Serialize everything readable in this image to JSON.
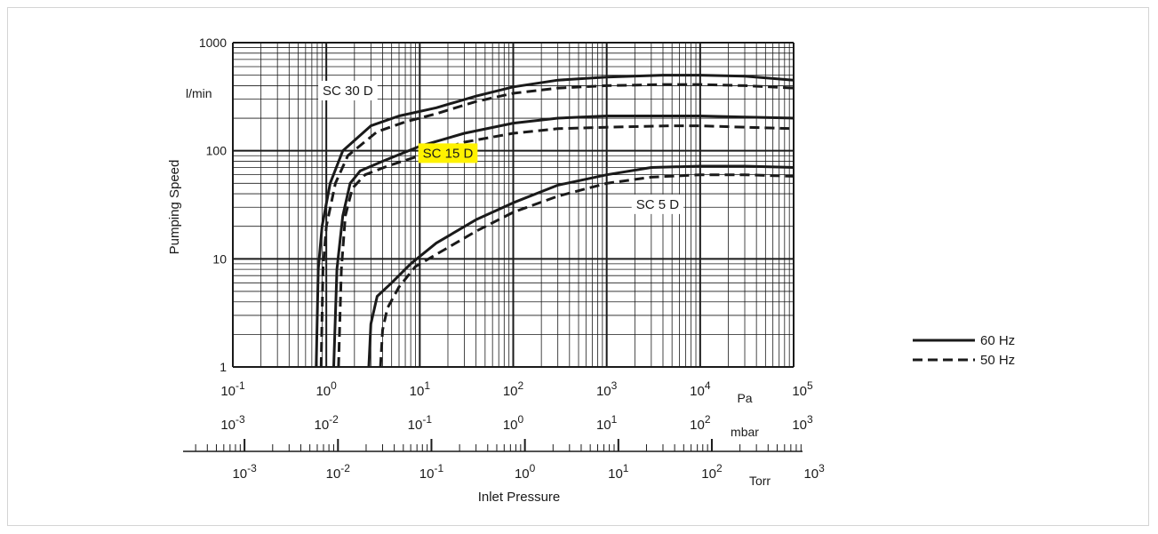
{
  "chart_data": {
    "type": "line",
    "title": "",
    "xlabel": "Inlet Pressure",
    "ylabel": "Pumping Speed",
    "yunit": "l/min",
    "x_unit": "Pa",
    "xscale": "log",
    "yscale": "log",
    "xlim": [
      0.1,
      100000
    ],
    "ylim": [
      1,
      1000
    ],
    "grid": true,
    "y_ticks": [
      "1",
      "10",
      "100",
      "1000"
    ],
    "x_axes": [
      {
        "unit": "Pa",
        "base": "10",
        "exponents": [
          "-1",
          "0",
          "1",
          "2",
          "3",
          "4",
          "5"
        ]
      },
      {
        "unit": "mbar",
        "base": "10",
        "exponents": [
          "-3",
          "-2",
          "-1",
          "0",
          "1",
          "2",
          "3"
        ]
      },
      {
        "unit": "Torr",
        "base": "10",
        "exponents": [
          "-3",
          "-2",
          "-1",
          "0",
          "1",
          "2",
          "3"
        ]
      }
    ],
    "model_labels": [
      {
        "text": "SC 30 D",
        "x": 1.7,
        "y": 360,
        "highlight": false
      },
      {
        "text": "SC 15 D",
        "x": 20,
        "y": 95,
        "highlight": true
      },
      {
        "text": "SC 5 D",
        "x": 3500,
        "y": 32,
        "highlight": false
      }
    ],
    "legend": {
      "placement": "right",
      "items": [
        {
          "label": "60 Hz",
          "style": "solid"
        },
        {
          "label": "50 Hz",
          "style": "dashed"
        }
      ]
    },
    "colors": {
      "line": "#1a1a1a",
      "highlight": "#fff200",
      "grid": "#1a1a1a"
    },
    "series": [
      {
        "model": "SC 30 D",
        "style": "solid",
        "points": [
          [
            0.78,
            1
          ],
          [
            0.82,
            8
          ],
          [
            0.9,
            20
          ],
          [
            1.1,
            50
          ],
          [
            1.5,
            100
          ],
          [
            3,
            170
          ],
          [
            6,
            210
          ],
          [
            15,
            250
          ],
          [
            40,
            320
          ],
          [
            100,
            390
          ],
          [
            300,
            450
          ],
          [
            1000,
            480
          ],
          [
            4000,
            500
          ],
          [
            10000,
            500
          ],
          [
            30000,
            490
          ],
          [
            100000,
            450
          ]
        ]
      },
      {
        "model": "SC 30 D",
        "style": "dashed",
        "points": [
          [
            0.88,
            1
          ],
          [
            0.92,
            8
          ],
          [
            1,
            20
          ],
          [
            1.25,
            50
          ],
          [
            1.7,
            90
          ],
          [
            3.5,
            150
          ],
          [
            7,
            185
          ],
          [
            15,
            220
          ],
          [
            40,
            285
          ],
          [
            100,
            340
          ],
          [
            300,
            380
          ],
          [
            1000,
            400
          ],
          [
            4000,
            410
          ],
          [
            10000,
            410
          ],
          [
            30000,
            400
          ],
          [
            100000,
            380
          ]
        ]
      },
      {
        "model": "SC 15 D",
        "style": "solid",
        "points": [
          [
            1.2,
            1
          ],
          [
            1.3,
            8
          ],
          [
            1.5,
            25
          ],
          [
            1.8,
            50
          ],
          [
            2.3,
            65
          ],
          [
            4,
            80
          ],
          [
            10,
            110
          ],
          [
            30,
            145
          ],
          [
            100,
            180
          ],
          [
            300,
            200
          ],
          [
            1000,
            210
          ],
          [
            5000,
            210
          ],
          [
            10000,
            210
          ],
          [
            30000,
            205
          ],
          [
            100000,
            200
          ]
        ]
      },
      {
        "model": "SC 15 D",
        "style": "dashed",
        "points": [
          [
            1.35,
            1
          ],
          [
            1.45,
            8
          ],
          [
            1.6,
            25
          ],
          [
            1.9,
            45
          ],
          [
            2.6,
            60
          ],
          [
            4.5,
            72
          ],
          [
            10,
            90
          ],
          [
            30,
            120
          ],
          [
            100,
            145
          ],
          [
            300,
            160
          ],
          [
            1000,
            165
          ],
          [
            5000,
            170
          ],
          [
            10000,
            170
          ],
          [
            30000,
            165
          ],
          [
            100000,
            160
          ]
        ]
      },
      {
        "model": "SC 5 D",
        "style": "solid",
        "points": [
          [
            2.85,
            1
          ],
          [
            3,
            2.5
          ],
          [
            3.5,
            4.5
          ],
          [
            5,
            6
          ],
          [
            8,
            9
          ],
          [
            15,
            14
          ],
          [
            40,
            23
          ],
          [
            100,
            33
          ],
          [
            300,
            48
          ],
          [
            1000,
            60
          ],
          [
            3000,
            70
          ],
          [
            10000,
            72
          ],
          [
            30000,
            72
          ],
          [
            100000,
            70
          ]
        ]
      },
      {
        "model": "SC 5 D",
        "style": "dashed",
        "points": [
          [
            3.8,
            1
          ],
          [
            4,
            2.2
          ],
          [
            4.5,
            3.5
          ],
          [
            6,
            5.5
          ],
          [
            9,
            8.5
          ],
          [
            15,
            11
          ],
          [
            40,
            18
          ],
          [
            100,
            27
          ],
          [
            300,
            38
          ],
          [
            1000,
            50
          ],
          [
            3000,
            57
          ],
          [
            10000,
            60
          ],
          [
            30000,
            60
          ],
          [
            100000,
            58
          ]
        ]
      }
    ]
  }
}
